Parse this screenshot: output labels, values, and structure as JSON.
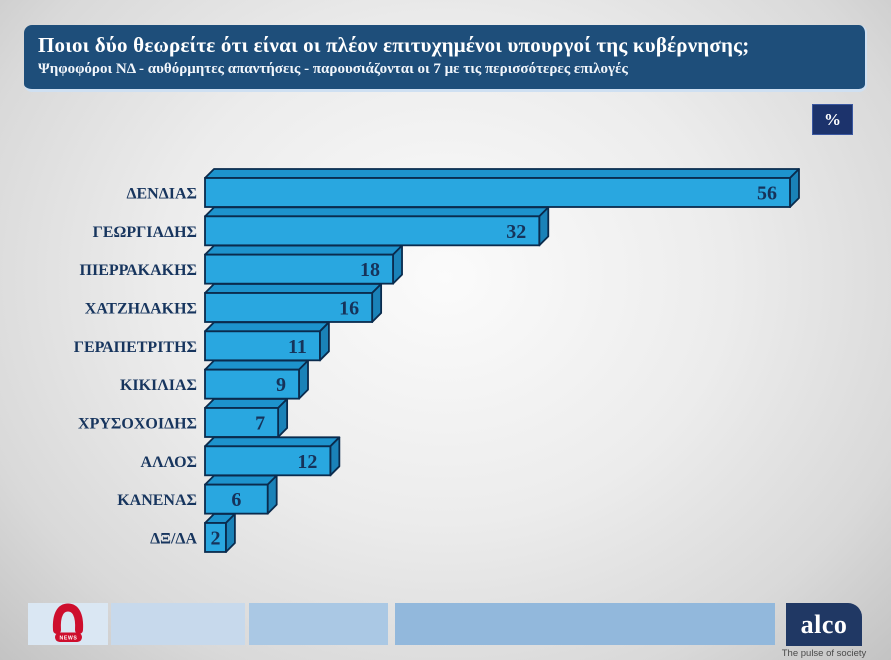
{
  "header": {
    "title": "Ποιοι δύο θεωρείτε ότι είναι οι πλέον επιτυχημένοι υπουργοί της κυβέρνησης;",
    "subtitle": "Ψηφοφόροι ΝΔ - αυθόρμητες απαντήσεις - παρουσιάζονται οι 7 με τις περισσότερες επιλογές",
    "unit_badge": "%"
  },
  "chart_data": {
    "type": "bar",
    "orientation": "horizontal",
    "categories": [
      "ΔΕΝΔΙΑΣ",
      "ΓΕΩΡΓΙΑΔΗΣ",
      "ΠΙΕΡΡΑΚΑΚΗΣ",
      "ΧΑΤΖΗΔΑΚΗΣ",
      "ΓΕΡΑΠΕΤΡΙΤΗΣ",
      "ΚΙΚΙΛΙΑΣ",
      "ΧΡΥΣΟΧΟΙΔΗΣ",
      "ΑΛΛΟΣ",
      "ΚΑΝΕΝΑΣ",
      "ΔΞ/ΔΑ"
    ],
    "values": [
      56,
      32,
      18,
      16,
      11,
      9,
      7,
      12,
      6,
      2
    ],
    "unit": "%",
    "xlim": [
      0,
      60
    ],
    "value_labels_inside": true,
    "style": "3d-extruded-horizontal-bars",
    "grid": false,
    "legend": false,
    "colors": {
      "bar_front": "#29a7e0",
      "bar_top": "#1d93cd",
      "bar_side": "#1a82b8",
      "bar_outline": "#0a2b4d",
      "label_text": "#17355e",
      "value_text": "#16335a"
    }
  },
  "footer": {
    "alpha_news": {
      "logo": "alpha-news",
      "news_label": "NEWS"
    },
    "alco": {
      "logo_text": "alco",
      "tagline": "The pulse of society"
    }
  },
  "colors": {
    "title_bg": "#1e4e7a",
    "badge_bg": "#1c336c",
    "alco_navy": "#203864",
    "alpha_red": "#ce0e2d",
    "footer_strips": [
      "#dae7f3",
      "#c7d9ec",
      "#aac8e4",
      "#92b8dc"
    ]
  }
}
